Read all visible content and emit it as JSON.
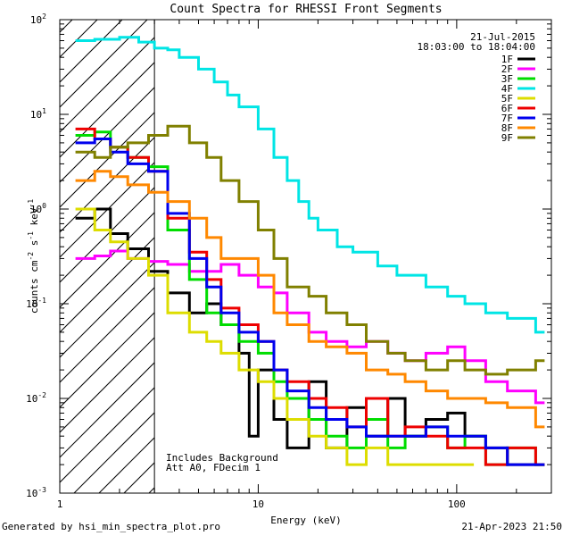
{
  "chart_data": {
    "type": "line",
    "title": "Count Spectra for RHESSI Front Segments",
    "xlabel": "Energy (keV)",
    "ylabel": "counts cm",
    "ylabel_exp1": "-2",
    "ylabel_mid": " s",
    "ylabel_exp2": "-1",
    "ylabel_end": " keV",
    "ylabel_exp3": "-1",
    "xscale": "log",
    "yscale": "log",
    "xlim": [
      1,
      300
    ],
    "ylim": [
      0.001,
      100
    ],
    "x_ticks": [
      {
        "v": 1,
        "label": "1"
      },
      {
        "v": 10,
        "label": "10"
      },
      {
        "v": 100,
        "label": "100"
      }
    ],
    "y_ticks": [
      {
        "v": 0.001,
        "base": "10",
        "exp": "-3"
      },
      {
        "v": 0.01,
        "base": "10",
        "exp": "-2"
      },
      {
        "v": 0.1,
        "base": "10",
        "exp": "-1"
      },
      {
        "v": 1,
        "base": "10",
        "exp": "0"
      },
      {
        "v": 10,
        "base": "10",
        "exp": "1"
      },
      {
        "v": 100,
        "base": "10",
        "exp": "2"
      }
    ],
    "date": "21-Jul-2015",
    "time_range": "18:03:00 to 18:04:00",
    "annotation_1": "Includes Background",
    "annotation_2": "Att A0, FDecim 1",
    "hatched_until_kev": 3,
    "series": [
      {
        "name": "1F",
        "color": "#000000",
        "points": [
          [
            1.2,
            0.8
          ],
          [
            1.5,
            1.0
          ],
          [
            1.8,
            0.55
          ],
          [
            2.2,
            0.38
          ],
          [
            2.8,
            0.22
          ],
          [
            3.5,
            0.13
          ],
          [
            4.5,
            0.08
          ],
          [
            5.5,
            0.1
          ],
          [
            6.5,
            0.06
          ],
          [
            8,
            0.03
          ],
          [
            9,
            0.004
          ],
          [
            10,
            0.02
          ],
          [
            12,
            0.006
          ],
          [
            14,
            0.003
          ],
          [
            18,
            0.015
          ],
          [
            22,
            0.003
          ],
          [
            28,
            0.008
          ],
          [
            35,
            0.004
          ],
          [
            45,
            0.01
          ],
          [
            55,
            0.004
          ],
          [
            70,
            0.006
          ],
          [
            90,
            0.007
          ],
          [
            110,
            0.004
          ],
          [
            140,
            0.003
          ],
          [
            180,
            0.002
          ],
          [
            250,
            0.002
          ]
        ]
      },
      {
        "name": "2F",
        "color": "#ff00ff",
        "points": [
          [
            1.2,
            0.3
          ],
          [
            1.5,
            0.32
          ],
          [
            1.8,
            0.36
          ],
          [
            2.2,
            0.3
          ],
          [
            2.8,
            0.28
          ],
          [
            3.5,
            0.26
          ],
          [
            4.5,
            0.22
          ],
          [
            5.5,
            0.22
          ],
          [
            6.5,
            0.26
          ],
          [
            8,
            0.2
          ],
          [
            10,
            0.15
          ],
          [
            12,
            0.13
          ],
          [
            14,
            0.08
          ],
          [
            18,
            0.05
          ],
          [
            22,
            0.04
          ],
          [
            28,
            0.035
          ],
          [
            35,
            0.04
          ],
          [
            45,
            0.03
          ],
          [
            55,
            0.025
          ],
          [
            70,
            0.03
          ],
          [
            90,
            0.035
          ],
          [
            110,
            0.025
          ],
          [
            140,
            0.015
          ],
          [
            180,
            0.012
          ],
          [
            250,
            0.009
          ]
        ]
      },
      {
        "name": "3F",
        "color": "#00dd00",
        "points": [
          [
            1.2,
            6.0
          ],
          [
            1.5,
            6.5
          ],
          [
            1.8,
            4.5
          ],
          [
            2.2,
            3.5
          ],
          [
            2.8,
            2.8
          ],
          [
            3.5,
            0.6
          ],
          [
            4.5,
            0.18
          ],
          [
            5.5,
            0.08
          ],
          [
            6.5,
            0.06
          ],
          [
            8,
            0.04
          ],
          [
            10,
            0.03
          ],
          [
            12,
            0.015
          ],
          [
            14,
            0.01
          ],
          [
            18,
            0.006
          ],
          [
            22,
            0.004
          ],
          [
            28,
            0.003
          ],
          [
            35,
            0.006
          ],
          [
            45,
            0.003
          ],
          [
            55,
            0.004
          ],
          [
            70,
            0.005
          ],
          [
            90,
            0.003
          ],
          [
            110,
            0.004
          ],
          [
            140,
            0.002
          ],
          [
            180,
            0.003
          ],
          [
            250,
            0.002
          ]
        ]
      },
      {
        "name": "4F",
        "color": "#00e5e5",
        "points": [
          [
            1.2,
            60
          ],
          [
            1.5,
            62
          ],
          [
            2,
            65
          ],
          [
            2.5,
            58
          ],
          [
            3,
            50
          ],
          [
            3.5,
            48
          ],
          [
            4,
            40
          ],
          [
            5,
            30
          ],
          [
            6,
            22
          ],
          [
            7,
            16
          ],
          [
            8,
            12
          ],
          [
            10,
            7
          ],
          [
            12,
            3.5
          ],
          [
            14,
            2
          ],
          [
            16,
            1.2
          ],
          [
            18,
            0.8
          ],
          [
            20,
            0.6
          ],
          [
            25,
            0.4
          ],
          [
            30,
            0.35
          ],
          [
            40,
            0.25
          ],
          [
            50,
            0.2
          ],
          [
            70,
            0.15
          ],
          [
            90,
            0.12
          ],
          [
            110,
            0.1
          ],
          [
            140,
            0.08
          ],
          [
            180,
            0.07
          ],
          [
            250,
            0.05
          ]
        ]
      },
      {
        "name": "5F",
        "color": "#dddd00",
        "points": [
          [
            1.2,
            1.0
          ],
          [
            1.5,
            0.6
          ],
          [
            1.8,
            0.45
          ],
          [
            2.2,
            0.3
          ],
          [
            2.8,
            0.2
          ],
          [
            3.5,
            0.08
          ],
          [
            4.5,
            0.05
          ],
          [
            5.5,
            0.04
          ],
          [
            6.5,
            0.03
          ],
          [
            8,
            0.02
          ],
          [
            10,
            0.015
          ],
          [
            12,
            0.01
          ],
          [
            14,
            0.006
          ],
          [
            18,
            0.004
          ],
          [
            22,
            0.003
          ],
          [
            28,
            0.002
          ],
          [
            35,
            0.003
          ],
          [
            45,
            0.002
          ],
          [
            55,
            0.002
          ],
          [
            70,
            0.002
          ],
          [
            90,
            0.002
          ],
          [
            110,
            0.002
          ]
        ]
      },
      {
        "name": "6F",
        "color": "#ee0000",
        "points": [
          [
            1.2,
            7.0
          ],
          [
            1.5,
            5.5
          ],
          [
            1.8,
            4.5
          ],
          [
            2.2,
            3.5
          ],
          [
            2.8,
            2.5
          ],
          [
            3.5,
            0.8
          ],
          [
            4.5,
            0.35
          ],
          [
            5.5,
            0.18
          ],
          [
            6.5,
            0.09
          ],
          [
            8,
            0.06
          ],
          [
            10,
            0.04
          ],
          [
            12,
            0.02
          ],
          [
            14,
            0.015
          ],
          [
            18,
            0.01
          ],
          [
            22,
            0.008
          ],
          [
            28,
            0.005
          ],
          [
            35,
            0.01
          ],
          [
            45,
            0.004
          ],
          [
            55,
            0.005
          ],
          [
            70,
            0.004
          ],
          [
            90,
            0.003
          ],
          [
            110,
            0.003
          ],
          [
            140,
            0.002
          ],
          [
            180,
            0.003
          ],
          [
            250,
            0.002
          ]
        ]
      },
      {
        "name": "7F",
        "color": "#0000ee",
        "points": [
          [
            1.2,
            5.0
          ],
          [
            1.5,
            5.5
          ],
          [
            1.8,
            4.0
          ],
          [
            2.2,
            3.0
          ],
          [
            2.8,
            2.5
          ],
          [
            3.5,
            0.9
          ],
          [
            4.5,
            0.3
          ],
          [
            5.5,
            0.15
          ],
          [
            6.5,
            0.08
          ],
          [
            8,
            0.05
          ],
          [
            10,
            0.04
          ],
          [
            12,
            0.02
          ],
          [
            14,
            0.012
          ],
          [
            18,
            0.008
          ],
          [
            22,
            0.006
          ],
          [
            28,
            0.005
          ],
          [
            35,
            0.004
          ],
          [
            45,
            0.004
          ],
          [
            55,
            0.004
          ],
          [
            70,
            0.005
          ],
          [
            90,
            0.004
          ],
          [
            110,
            0.004
          ],
          [
            140,
            0.003
          ],
          [
            180,
            0.002
          ],
          [
            250,
            0.002
          ]
        ]
      },
      {
        "name": "8F",
        "color": "#ff8800",
        "points": [
          [
            1.2,
            2.0
          ],
          [
            1.5,
            2.5
          ],
          [
            1.8,
            2.2
          ],
          [
            2.2,
            1.8
          ],
          [
            2.8,
            1.5
          ],
          [
            3.5,
            1.2
          ],
          [
            4.5,
            0.8
          ],
          [
            5.5,
            0.5
          ],
          [
            6.5,
            0.3
          ],
          [
            8,
            0.3
          ],
          [
            10,
            0.2
          ],
          [
            12,
            0.08
          ],
          [
            14,
            0.06
          ],
          [
            18,
            0.04
          ],
          [
            22,
            0.035
          ],
          [
            28,
            0.03
          ],
          [
            35,
            0.02
          ],
          [
            45,
            0.018
          ],
          [
            55,
            0.015
          ],
          [
            70,
            0.012
          ],
          [
            90,
            0.01
          ],
          [
            110,
            0.01
          ],
          [
            140,
            0.009
          ],
          [
            180,
            0.008
          ],
          [
            250,
            0.005
          ]
        ]
      },
      {
        "name": "9F",
        "color": "#808000",
        "points": [
          [
            1.2,
            4.0
          ],
          [
            1.5,
            3.5
          ],
          [
            1.8,
            4.5
          ],
          [
            2.2,
            5.0
          ],
          [
            2.8,
            6.0
          ],
          [
            3.5,
            7.5
          ],
          [
            4.5,
            5.0
          ],
          [
            5.5,
            3.5
          ],
          [
            6.5,
            2.0
          ],
          [
            8,
            1.2
          ],
          [
            10,
            0.6
          ],
          [
            12,
            0.3
          ],
          [
            14,
            0.15
          ],
          [
            18,
            0.12
          ],
          [
            22,
            0.08
          ],
          [
            28,
            0.06
          ],
          [
            35,
            0.04
          ],
          [
            45,
            0.03
          ],
          [
            55,
            0.025
          ],
          [
            70,
            0.02
          ],
          [
            90,
            0.025
          ],
          [
            110,
            0.02
          ],
          [
            140,
            0.018
          ],
          [
            180,
            0.02
          ],
          [
            250,
            0.025
          ]
        ]
      }
    ]
  },
  "footer": {
    "generated_by": "Generated by hsi_min_spectra_plot.pro",
    "timestamp": "21-Apr-2023 21:50"
  }
}
